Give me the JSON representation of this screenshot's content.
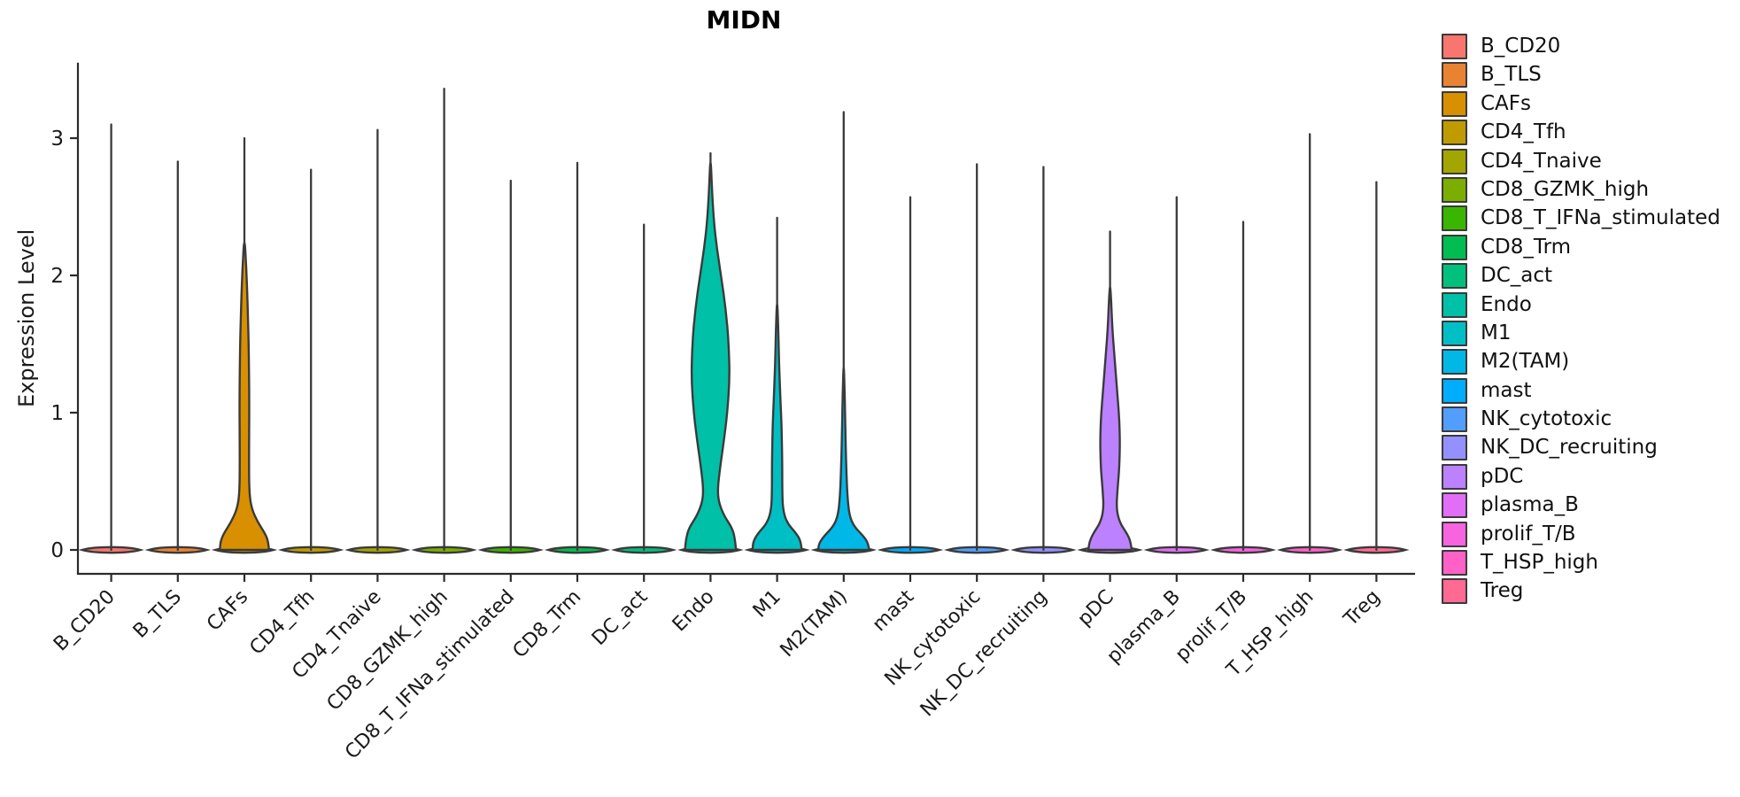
{
  "chart_data": {
    "type": "violin",
    "title": "MIDN",
    "ylabel": "Expression Level",
    "xlabel": "",
    "yticks": [
      0,
      1,
      2,
      3
    ],
    "ylim": [
      0,
      3.55
    ],
    "grid": false,
    "legend_position": "right",
    "x_label_rotation_deg": 45,
    "cell_types": [
      {
        "name": "B_CD20",
        "color": "#F8766D",
        "max_expression": 3.1,
        "density_profile": null
      },
      {
        "name": "B_TLS",
        "color": "#EA8331",
        "max_expression": 2.83,
        "density_profile": null
      },
      {
        "name": "CAFs",
        "color": "#D89000",
        "max_expression": 3.0,
        "density_profile": [
          [
            0,
            0.82
          ],
          [
            0.06,
            0.8
          ],
          [
            0.12,
            0.69
          ],
          [
            0.2,
            0.45
          ],
          [
            0.3,
            0.24
          ],
          [
            0.42,
            0.16
          ],
          [
            0.7,
            0.155
          ],
          [
            1.1,
            0.165
          ],
          [
            1.5,
            0.145
          ],
          [
            1.8,
            0.105
          ],
          [
            2.05,
            0.065
          ],
          [
            2.3,
            0.027
          ]
        ]
      },
      {
        "name": "CD4_Tfh",
        "color": "#C09B00",
        "max_expression": 2.77,
        "density_profile": null
      },
      {
        "name": "CD4_Tnaive",
        "color": "#A3A500",
        "max_expression": 3.06,
        "density_profile": null
      },
      {
        "name": "CD8_GZMK_high",
        "color": "#7CAE00",
        "max_expression": 3.36,
        "density_profile": null
      },
      {
        "name": "CD8_T_IFNa_stimulated",
        "color": "#39B600",
        "max_expression": 2.69,
        "density_profile": null
      },
      {
        "name": "CD8_Trm",
        "color": "#00BC51",
        "max_expression": 2.82,
        "density_profile": null
      },
      {
        "name": "DC_act",
        "color": "#00C07D",
        "max_expression": 2.37,
        "density_profile": null
      },
      {
        "name": "Endo",
        "color": "#00C0A7",
        "max_expression": 2.89,
        "density_profile": [
          [
            0,
            0.85
          ],
          [
            0.08,
            0.82
          ],
          [
            0.16,
            0.72
          ],
          [
            0.25,
            0.45
          ],
          [
            0.35,
            0.27
          ],
          [
            0.45,
            0.24
          ],
          [
            0.6,
            0.32
          ],
          [
            0.8,
            0.45
          ],
          [
            1.0,
            0.56
          ],
          [
            1.25,
            0.64
          ],
          [
            1.5,
            0.61
          ],
          [
            1.75,
            0.51
          ],
          [
            2.0,
            0.35
          ],
          [
            2.2,
            0.21
          ],
          [
            2.4,
            0.11
          ],
          [
            2.6,
            0.053
          ],
          [
            2.89,
            0.02
          ]
        ]
      },
      {
        "name": "M1",
        "color": "#00BFC4",
        "max_expression": 2.42,
        "density_profile": [
          [
            0,
            0.82
          ],
          [
            0.06,
            0.8
          ],
          [
            0.12,
            0.64
          ],
          [
            0.2,
            0.32
          ],
          [
            0.3,
            0.19
          ],
          [
            0.45,
            0.17
          ],
          [
            0.65,
            0.17
          ],
          [
            0.9,
            0.15
          ],
          [
            1.1,
            0.11
          ],
          [
            1.35,
            0.066
          ],
          [
            1.6,
            0.04
          ],
          [
            1.85,
            0.021
          ]
        ]
      },
      {
        "name": "M2(TAM)",
        "color": "#00B8E7",
        "max_expression": 3.19,
        "density_profile": [
          [
            0,
            0.85
          ],
          [
            0.05,
            0.82
          ],
          [
            0.1,
            0.66
          ],
          [
            0.17,
            0.35
          ],
          [
            0.25,
            0.19
          ],
          [
            0.4,
            0.12
          ],
          [
            0.6,
            0.085
          ],
          [
            0.85,
            0.059
          ],
          [
            1.1,
            0.037
          ],
          [
            1.4,
            0.021
          ]
        ]
      },
      {
        "name": "mast",
        "color": "#00ACFC",
        "max_expression": 2.57,
        "density_profile": null
      },
      {
        "name": "NK_cytotoxic",
        "color": "#529EFF",
        "max_expression": 2.81,
        "density_profile": null
      },
      {
        "name": "NK_DC_recruiting",
        "color": "#9590FF",
        "max_expression": 2.79,
        "density_profile": null
      },
      {
        "name": "pDC",
        "color": "#BC81FF",
        "max_expression": 2.32,
        "density_profile": [
          [
            0,
            0.72
          ],
          [
            0.06,
            0.69
          ],
          [
            0.12,
            0.56
          ],
          [
            0.2,
            0.32
          ],
          [
            0.3,
            0.21
          ],
          [
            0.45,
            0.25
          ],
          [
            0.6,
            0.31
          ],
          [
            0.78,
            0.33
          ],
          [
            0.95,
            0.31
          ],
          [
            1.15,
            0.24
          ],
          [
            1.4,
            0.15
          ],
          [
            1.6,
            0.08
          ],
          [
            1.8,
            0.04
          ],
          [
            1.95,
            0.024
          ]
        ]
      },
      {
        "name": "plasma_B",
        "color": "#E26EF7",
        "max_expression": 2.57,
        "density_profile": null
      },
      {
        "name": "prolif_T/B",
        "color": "#F863E0",
        "max_expression": 2.39,
        "density_profile": null
      },
      {
        "name": "T_HSP_high",
        "color": "#FF61C7",
        "max_expression": 3.03,
        "density_profile": null
      },
      {
        "name": "Treg",
        "color": "#FF6A95",
        "max_expression": 2.68,
        "density_profile": null
      }
    ],
    "style_colors": {
      "axis": "#2b2b2b",
      "violin_outline": "#3a3a3a",
      "tick_label": "#1a1a1a"
    }
  }
}
